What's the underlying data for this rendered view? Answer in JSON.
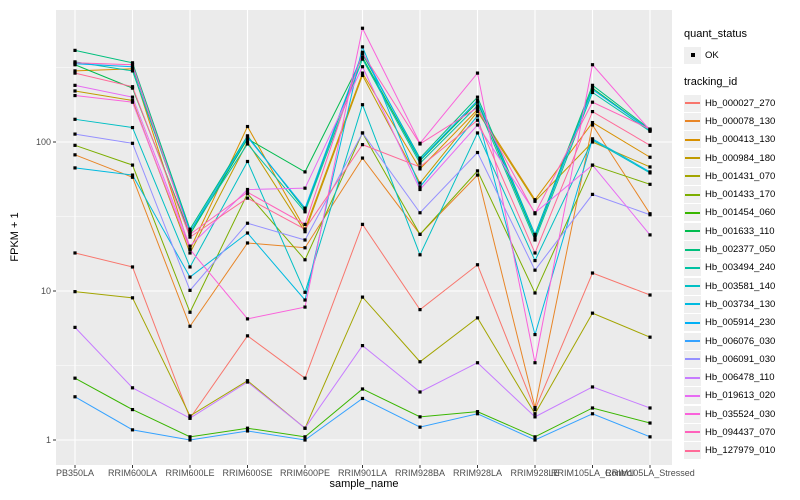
{
  "chart_data": {
    "type": "line",
    "title": "",
    "xlabel": "sample_name",
    "ylabel": "FPKM + 1",
    "y_scale": "log10",
    "y_ticks": [
      1,
      10,
      100
    ],
    "y_minor_ticks": [
      3.162,
      31.62,
      316.2
    ],
    "ylim_log": [
      0.68,
      770
    ],
    "grid": true,
    "legend_position": "right",
    "categories": [
      "PB350LA",
      "RRIM600LA",
      "RRIM600LE",
      "RRIM600SE",
      "RRIM600PE",
      "RRIM901LA",
      "RRIM928BA",
      "RRIM928LA",
      "RRIM928LE",
      "RRIM105LA_Control",
      "RRIM105LA_Stressed"
    ],
    "series": [
      {
        "name": "Hb_000027_270",
        "color": "#F8766D",
        "values": [
          18,
          14.5,
          1.4,
          5.0,
          2.6,
          28,
          7.5,
          15,
          1.6,
          13.2,
          9.4
        ]
      },
      {
        "name": "Hb_000078_130",
        "color": "#E88526",
        "values": [
          82,
          58,
          5.8,
          21,
          19.5,
          78,
          24,
          60,
          1.65,
          130,
          33
        ]
      },
      {
        "name": "Hb_000413_130",
        "color": "#D89000",
        "values": [
          300,
          310,
          19,
          127,
          26,
          290,
          66,
          165,
          41,
          135,
          79
        ]
      },
      {
        "name": "Hb_000984_180",
        "color": "#C09B00",
        "values": [
          220,
          190,
          18,
          100,
          25,
          280,
          53,
          160,
          40,
          100,
          68
        ]
      },
      {
        "name": "Hb_001431_070",
        "color": "#A3A500",
        "values": [
          9.9,
          9.0,
          1.45,
          2.5,
          1.2,
          9.1,
          3.35,
          6.6,
          1.5,
          7.1,
          4.9
        ]
      },
      {
        "name": "Hb_001433_170",
        "color": "#7CAE00",
        "values": [
          95,
          70,
          7.2,
          45,
          16.2,
          115,
          24,
          64,
          9.7,
          70,
          52
        ]
      },
      {
        "name": "Hb_001454_060",
        "color": "#39B600",
        "values": [
          2.6,
          1.6,
          1.05,
          1.2,
          1.05,
          2.2,
          1.43,
          1.55,
          1.05,
          1.64,
          1.3
        ]
      },
      {
        "name": "Hb_001633_110",
        "color": "#00BB4E",
        "values": [
          330,
          230,
          24,
          105,
          63,
          370,
          75,
          185,
          23,
          230,
          120
        ]
      },
      {
        "name": "Hb_002377_050",
        "color": "#00BF7D",
        "values": [
          412,
          340,
          26,
          110,
          35,
          390,
          78,
          200,
          24,
          240,
          122
        ]
      },
      {
        "name": "Hb_003494_240",
        "color": "#00C1A3",
        "values": [
          345,
          300,
          25,
          97,
          34,
          360,
          72,
          175,
          22,
          215,
          118
        ]
      },
      {
        "name": "Hb_003581_140",
        "color": "#00BFC4",
        "values": [
          142,
          125,
          14.5,
          74,
          9.8,
          178,
          17.5,
          115,
          16,
          103,
          62
        ]
      },
      {
        "name": "Hb_003734_130",
        "color": "#00BAE0",
        "values": [
          67,
          60,
          12.4,
          24.5,
          8.7,
          435,
          50,
          150,
          5.1,
          105,
          63
        ]
      },
      {
        "name": "Hb_005914_230",
        "color": "#00B0F6",
        "values": [
          335,
          320,
          25,
          108,
          36,
          400,
          76,
          190,
          23.7,
          225,
          120
        ]
      },
      {
        "name": "Hb_006076_030",
        "color": "#35A2FF",
        "values": [
          1.95,
          1.17,
          1.0,
          1.15,
          1.0,
          1.9,
          1.22,
          1.5,
          1.0,
          1.5,
          1.05
        ]
      },
      {
        "name": "Hb_006091_030",
        "color": "#9590FF",
        "values": [
          113,
          98,
          10.1,
          28.5,
          22,
          115,
          33.5,
          85,
          13.8,
          44.5,
          32.5
        ]
      },
      {
        "name": "Hb_006478_110",
        "color": "#C77CFF",
        "values": [
          5.7,
          2.24,
          1.4,
          2.45,
          1.2,
          4.3,
          2.1,
          3.3,
          1.43,
          2.27,
          1.64
        ]
      },
      {
        "name": "Hb_019613_020",
        "color": "#E76BF3",
        "values": [
          240,
          200,
          20,
          48,
          49,
          320,
          48,
          130,
          33.5,
          70,
          23.8
        ]
      },
      {
        "name": "Hb_035524_030",
        "color": "#FA62DB",
        "values": [
          205,
          185,
          19,
          6.5,
          7.8,
          580,
          98,
          290,
          3.3,
          330,
          120
        ]
      },
      {
        "name": "Hb_094437_070",
        "color": "#FF62BC",
        "values": [
          340,
          330,
          24,
          46,
          28,
          395,
          97,
          170,
          33,
          185,
          122
        ]
      },
      {
        "name": "Hb_127979_010",
        "color": "#FF6A98",
        "values": [
          290,
          235,
          23,
          42,
          26,
          96,
          68,
          140,
          18,
          160,
          95
        ]
      }
    ],
    "legend": {
      "quant_status_title": "quant_status",
      "quant_status_items": [
        "OK"
      ],
      "tracking_id_title": "tracking_id"
    },
    "colors": {
      "panel_bg": "#EBEBEB",
      "grid_major": "#FFFFFF",
      "grid_minor": "#F5F5F5",
      "point": "#000000",
      "tick_text": "#4D4D4D",
      "axis_tick": "#333333",
      "legend_key_bg": "#EFEFEF"
    }
  }
}
